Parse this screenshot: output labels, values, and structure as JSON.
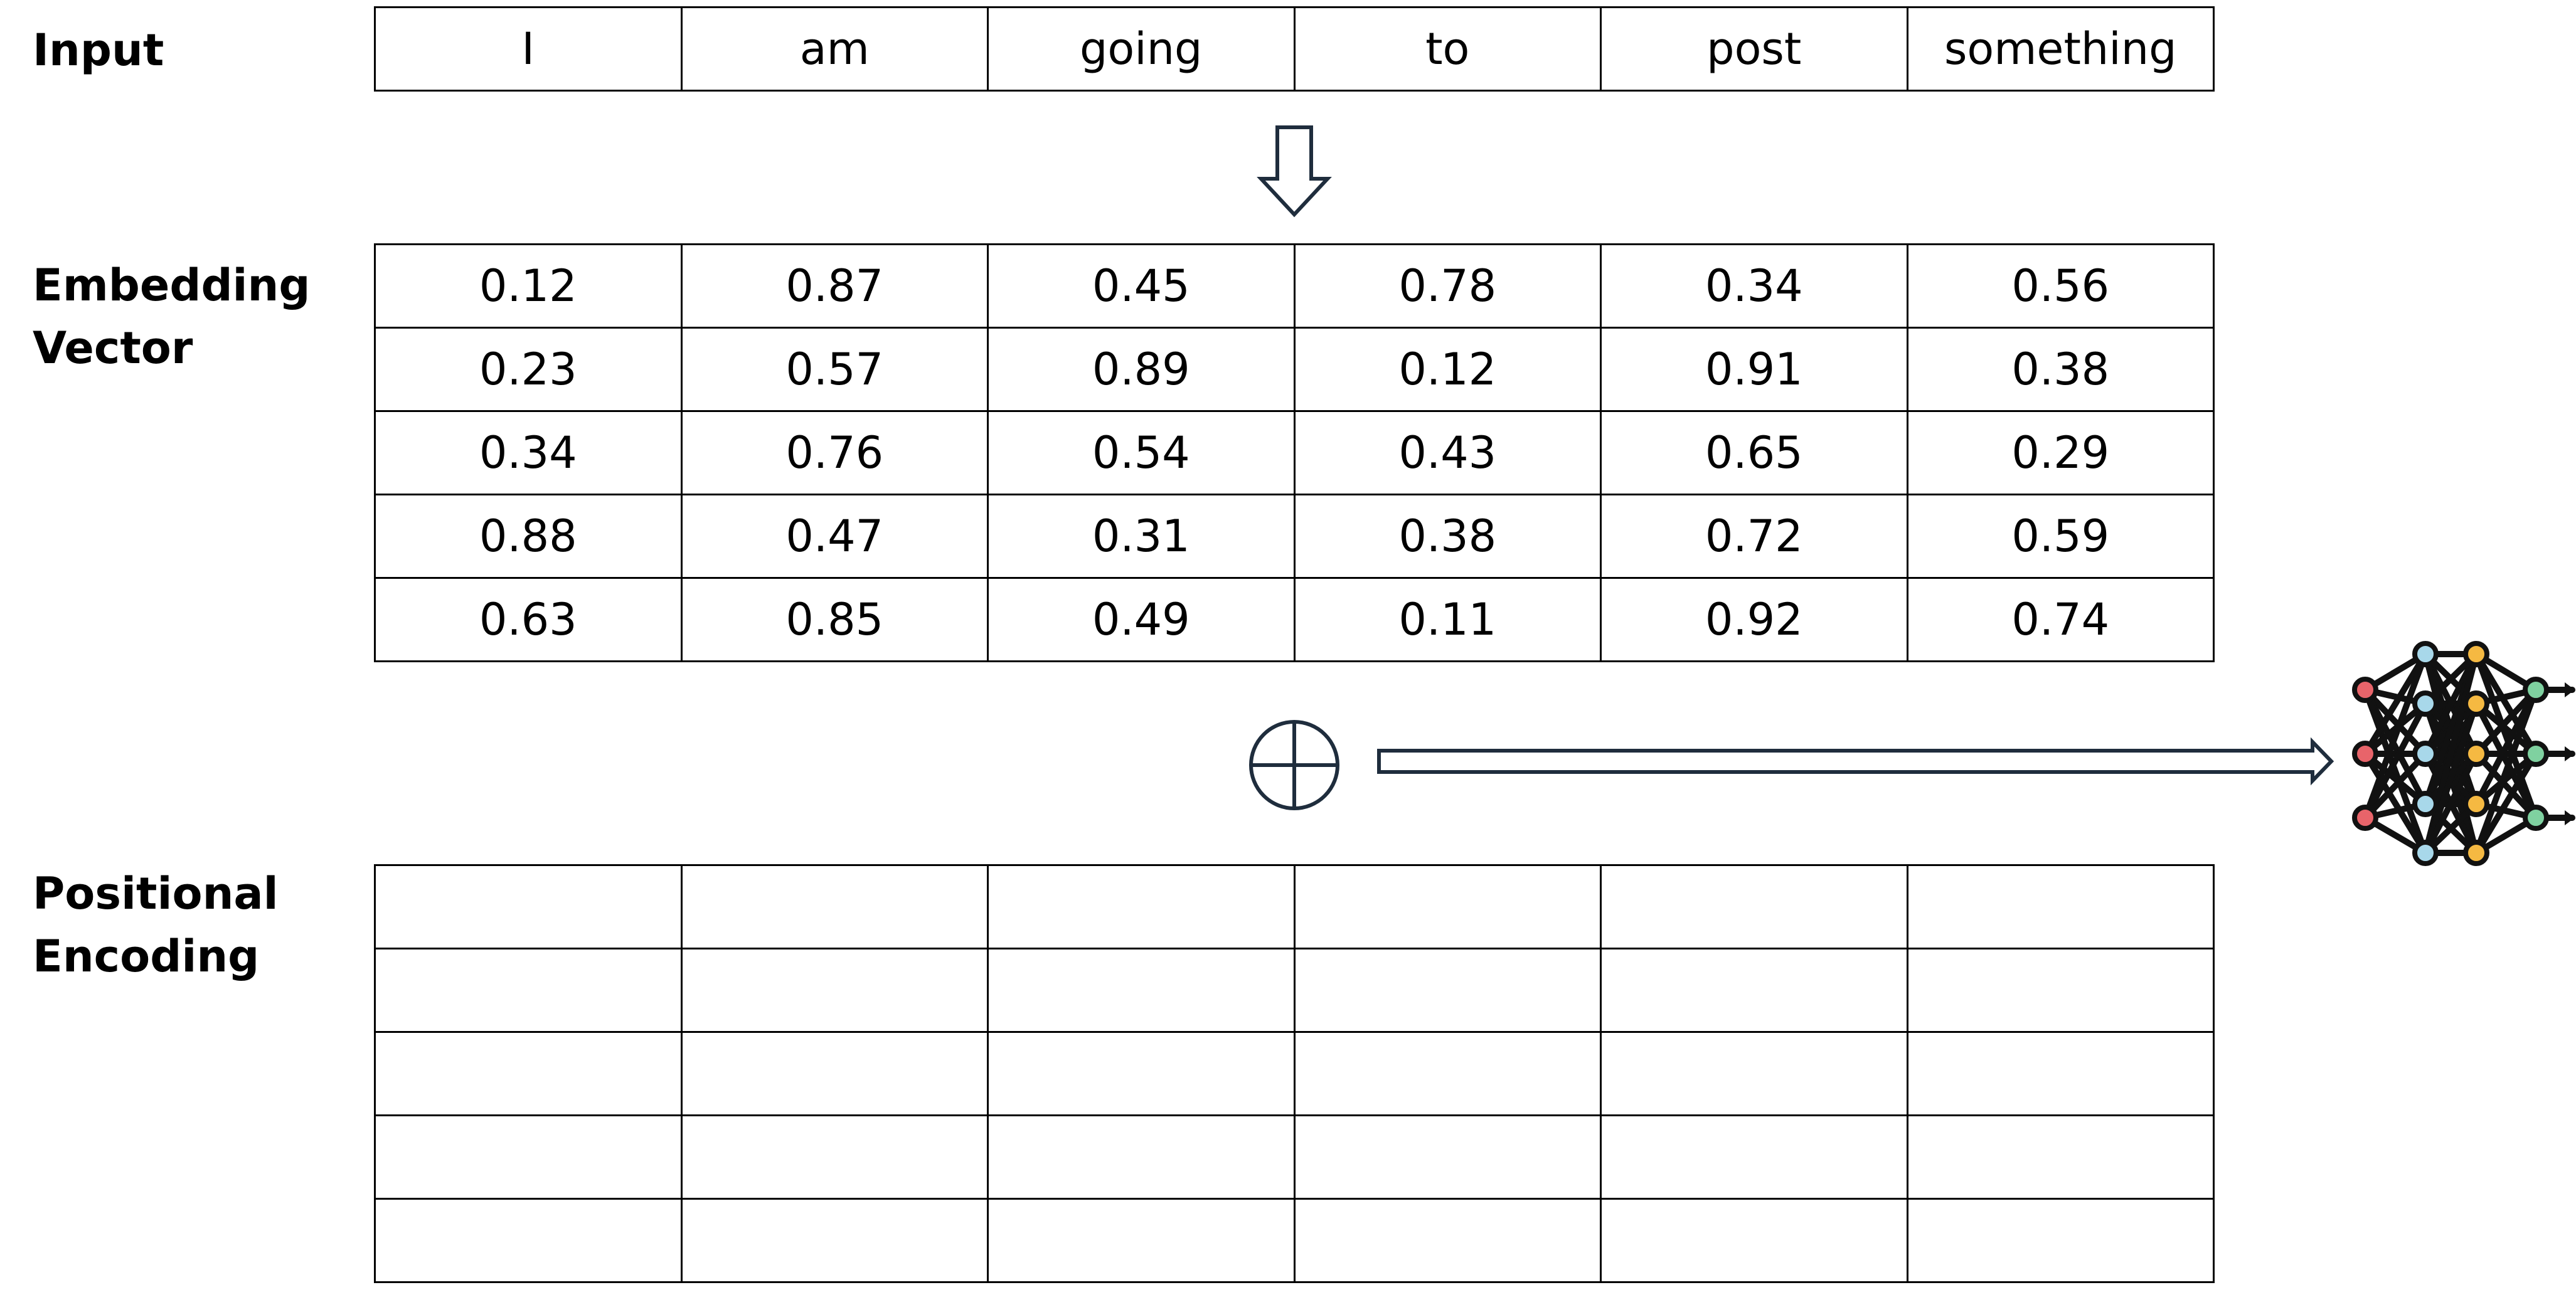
{
  "labels": {
    "input": "Input",
    "embedding": [
      "Embedding",
      "Vector"
    ],
    "positional": [
      "Positional",
      "Encoding"
    ]
  },
  "tokens": [
    "I",
    "am",
    "going",
    "to",
    "post",
    "something"
  ],
  "embedding_rows": [
    [
      "0.12",
      "0.87",
      "0.45",
      "0.78",
      "0.34",
      "0.56"
    ],
    [
      "0.23",
      "0.57",
      "0.89",
      "0.12",
      "0.91",
      "0.38"
    ],
    [
      "0.34",
      "0.76",
      "0.54",
      "0.43",
      "0.65",
      "0.29"
    ],
    [
      "0.88",
      "0.47",
      "0.31",
      "0.38",
      "0.72",
      "0.59"
    ],
    [
      "0.63",
      "0.85",
      "0.49",
      "0.11",
      "0.92",
      "0.74"
    ]
  ],
  "positional_rows": [
    [
      "",
      "",
      "",
      "",
      "",
      ""
    ],
    [
      "",
      "",
      "",
      "",
      "",
      ""
    ],
    [
      "",
      "",
      "",
      "",
      "",
      ""
    ],
    [
      "",
      "",
      "",
      "",
      "",
      ""
    ],
    [
      "",
      "",
      "",
      "",
      "",
      ""
    ]
  ],
  "icons": {
    "down_arrow": "down-arrow-icon",
    "plus": "circle-plus-icon",
    "right_arrow": "right-arrow-icon",
    "network": "neural-network-icon"
  },
  "colors": {
    "arrow_stroke": "#1f2d3d",
    "node_input": "#e8646a",
    "node_hidden_blue": "#a8d8ea",
    "node_hidden_orange": "#f5b942",
    "node_output": "#7fd1a0"
  }
}
